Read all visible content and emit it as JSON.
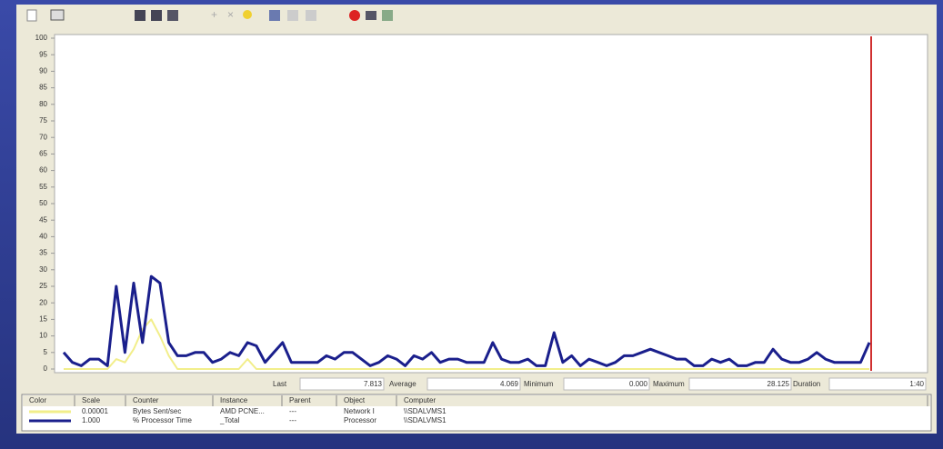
{
  "chart_data": {
    "type": "line",
    "ylim": [
      0,
      100
    ],
    "yticks": [
      0,
      5,
      10,
      15,
      20,
      25,
      30,
      35,
      40,
      45,
      50,
      55,
      60,
      65,
      70,
      75,
      80,
      85,
      90,
      95,
      100
    ],
    "series": [
      {
        "name": "Bytes Sent/sec",
        "color": "#f2ee8a",
        "values": [
          0,
          0,
          0,
          0,
          0,
          0,
          3,
          2,
          6,
          12,
          15,
          10,
          4,
          0,
          0,
          0,
          0,
          0,
          0,
          0,
          0,
          3,
          0,
          0,
          0,
          0,
          0,
          0,
          0,
          0,
          0,
          0,
          0,
          0,
          0,
          0,
          0,
          0,
          0,
          0,
          0,
          0,
          0,
          0,
          0,
          0,
          0,
          0,
          0,
          0,
          0,
          0,
          0,
          0,
          0,
          0,
          0,
          0,
          0,
          0,
          0,
          0,
          0,
          0,
          0,
          0,
          0,
          0,
          0,
          0,
          0,
          0,
          0,
          0,
          0,
          0,
          0,
          0,
          0,
          0,
          0,
          0,
          0,
          0,
          0,
          0,
          0,
          0,
          0,
          0,
          0,
          0,
          0
        ]
      },
      {
        "name": "% Processor Time",
        "color": "#1a1f8c",
        "values": [
          5,
          2,
          1,
          3,
          3,
          1,
          25,
          5,
          26,
          8,
          28,
          26,
          8,
          4,
          4,
          5,
          5,
          2,
          3,
          5,
          4,
          8,
          7,
          2,
          5,
          8,
          2,
          2,
          2,
          2,
          4,
          3,
          5,
          5,
          3,
          1,
          2,
          4,
          3,
          1,
          4,
          3,
          5,
          2,
          3,
          3,
          2,
          2,
          2,
          8,
          3,
          2,
          2,
          3,
          1,
          1,
          11,
          2,
          4,
          1,
          3,
          2,
          1,
          2,
          4,
          4,
          5,
          6,
          5,
          4,
          3,
          3,
          1,
          1,
          3,
          2,
          3,
          1,
          1,
          2,
          2,
          6,
          3,
          2,
          2,
          3,
          5,
          3,
          2,
          2,
          2,
          2,
          8
        ]
      }
    ]
  },
  "stats": [
    {
      "label": "Last",
      "value": "7.813"
    },
    {
      "label": "Average",
      "value": "4.069"
    },
    {
      "label": "Minimum",
      "value": "0.000"
    },
    {
      "label": "Maximum",
      "value": "28.125"
    },
    {
      "label": "Duration",
      "value": "1:40"
    }
  ],
  "table": {
    "headers": [
      "Color",
      "Scale",
      "Counter",
      "Instance",
      "Parent",
      "Object",
      "Computer"
    ],
    "rows": [
      [
        "0.00001",
        "Bytes Sent/sec",
        "AMD PCNE...",
        "---",
        "Network I",
        "\\\\SDALVMS1"
      ],
      [
        "1.000",
        "% Processor Time",
        "_Total",
        "---",
        "Processor",
        "\\\\SDALVMS1"
      ]
    ]
  }
}
